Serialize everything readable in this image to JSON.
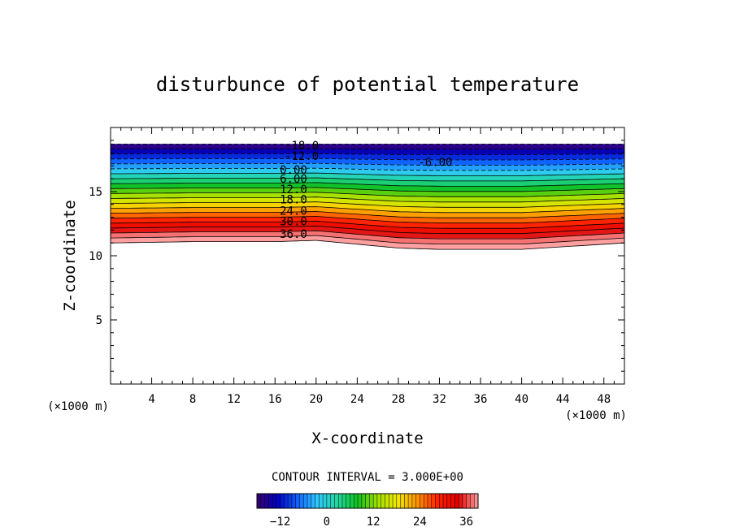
{
  "chart_data": {
    "type": "contour",
    "title": "disturbunce of potential temperature",
    "xlabel": "X-coordinate",
    "ylabel": "Z-coordinate",
    "x_unit_label": "(×1000 m)",
    "z_unit_label": "(×1000 m)",
    "xlim": [
      0,
      50
    ],
    "ylim": [
      0,
      20
    ],
    "x_ticks": [
      4,
      8,
      12,
      16,
      20,
      24,
      28,
      32,
      36,
      40,
      44,
      48
    ],
    "y_ticks": [
      5,
      10,
      15
    ],
    "contour_interval_text": "CONTOUR INTERVAL = 3.000E+00",
    "contour_levels": [
      -18,
      -15,
      -12,
      -9,
      -6,
      -3,
      0,
      3,
      6,
      9,
      12,
      15,
      18,
      21,
      24,
      27,
      30,
      33,
      36,
      39
    ],
    "contour_labels": [
      {
        "text": "-18.0",
        "x": 18.6,
        "z": 18.6
      },
      {
        "text": "-12.0",
        "x": 18.6,
        "z": 17.8
      },
      {
        "text": "-6.00",
        "x": 31.6,
        "z": 17.3
      },
      {
        "text": "0.00",
        "x": 17.8,
        "z": 16.7
      },
      {
        "text": "6.00",
        "x": 17.8,
        "z": 16.0
      },
      {
        "text": "12.0",
        "x": 17.8,
        "z": 15.2
      },
      {
        "text": "18.0",
        "x": 17.8,
        "z": 14.4
      },
      {
        "text": "24.0",
        "x": 17.8,
        "z": 13.5
      },
      {
        "text": "30.0",
        "x": 17.8,
        "z": 12.7
      },
      {
        "text": "36.0",
        "x": 17.8,
        "z": 11.7
      }
    ],
    "data_top_z": 18.7,
    "lower_boundary_z": [
      {
        "x": 0,
        "z": 11.0
      },
      {
        "x": 8,
        "z": 11.1
      },
      {
        "x": 16,
        "z": 11.1
      },
      {
        "x": 20,
        "z": 11.2
      },
      {
        "x": 24,
        "z": 10.9
      },
      {
        "x": 28,
        "z": 10.6
      },
      {
        "x": 32,
        "z": 10.5
      },
      {
        "x": 36,
        "z": 10.5
      },
      {
        "x": 40,
        "z": 10.5
      },
      {
        "x": 44,
        "z": 10.7
      },
      {
        "x": 48,
        "z": 10.9
      },
      {
        "x": 50,
        "z": 11.0
      }
    ],
    "colorbar": {
      "min": -18,
      "max": 39,
      "tick_values": [
        -12,
        0,
        12,
        24,
        36
      ],
      "colors": [
        "#3a0070",
        "#0000c0",
        "#1060ff",
        "#30c8ff",
        "#20d8a0",
        "#10c020",
        "#a0e000",
        "#f0e800",
        "#ff9000",
        "#ff2000",
        "#e00000",
        "#ffa0a0"
      ]
    }
  }
}
